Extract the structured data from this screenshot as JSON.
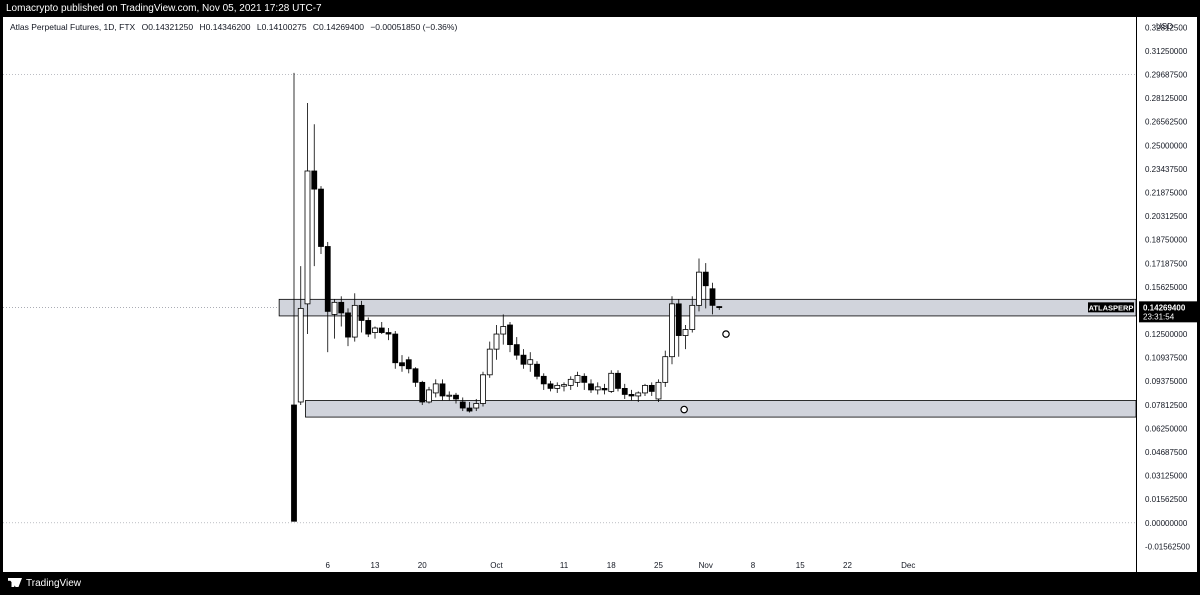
{
  "header": {
    "publisher_text": "Lomacrypto published on TradingView.com, Nov 05, 2021 17:28 UTC-7"
  },
  "legend": {
    "symbol": "Atlas Perpetual Futures, 1D, FTX",
    "open": "O0.14321250",
    "high": "H0.14346200",
    "low": "L0.14100275",
    "close": "C0.14269400",
    "change": "−0.00051850 (−0.36%)"
  },
  "currency_label": "USD",
  "price_tag": {
    "symbol": "ATLASPERP",
    "price": "0.14269400",
    "countdown": "23:31:54"
  },
  "footer": {
    "brand": "TradingView"
  },
  "colors": {
    "bull_body": "#ffffff",
    "bear_body": "#000000",
    "candle_outline": "#000000",
    "zone_fill": "#d1d4dc",
    "price_tag_bg": "#000000"
  },
  "chart_data": {
    "type": "candlestick",
    "ylim": [
      -0.024,
      0.335
    ],
    "y_ticks": [
      "0.32812500",
      "0.31250000",
      "0.29687500",
      "0.28125000",
      "0.26562500",
      "0.25000000",
      "0.23437500",
      "0.21875000",
      "0.20312500",
      "0.18750000",
      "0.17187500",
      "0.15625000",
      "0.12500000",
      "0.10937500",
      "0.09375000",
      "0.07812500",
      "0.06250000",
      "0.04687500",
      "0.03125000",
      "0.01562500",
      "0.00000000",
      "-0.01562500"
    ],
    "x_ticks": [
      {
        "label": "6",
        "day": 5
      },
      {
        "label": "13",
        "day": 12
      },
      {
        "label": "20",
        "day": 19
      },
      {
        "label": "Oct",
        "day": 30
      },
      {
        "label": "11",
        "day": 40
      },
      {
        "label": "18",
        "day": 47
      },
      {
        "label": "25",
        "day": 54
      },
      {
        "label": "Nov",
        "day": 61
      },
      {
        "label": "8",
        "day": 68
      },
      {
        "label": "15",
        "day": 75
      },
      {
        "label": "22",
        "day": 82
      },
      {
        "label": "Dec",
        "day": 91
      }
    ],
    "candles": [
      {
        "o": 0.078,
        "h": 0.298,
        "l": 0.001,
        "c": 0.001
      },
      {
        "o": 0.08,
        "h": 0.17,
        "l": 0.078,
        "c": 0.142
      },
      {
        "o": 0.145,
        "h": 0.278,
        "l": 0.125,
        "c": 0.233
      },
      {
        "o": 0.233,
        "h": 0.264,
        "l": 0.17,
        "c": 0.221
      },
      {
        "o": 0.221,
        "h": 0.223,
        "l": 0.178,
        "c": 0.183
      },
      {
        "o": 0.183,
        "h": 0.186,
        "l": 0.113,
        "c": 0.14
      },
      {
        "o": 0.138,
        "h": 0.148,
        "l": 0.122,
        "c": 0.146
      },
      {
        "o": 0.146,
        "h": 0.15,
        "l": 0.13,
        "c": 0.139
      },
      {
        "o": 0.139,
        "h": 0.142,
        "l": 0.117,
        "c": 0.123
      },
      {
        "o": 0.123,
        "h": 0.152,
        "l": 0.12,
        "c": 0.144
      },
      {
        "o": 0.144,
        "h": 0.147,
        "l": 0.126,
        "c": 0.134
      },
      {
        "o": 0.134,
        "h": 0.136,
        "l": 0.123,
        "c": 0.125
      },
      {
        "o": 0.126,
        "h": 0.13,
        "l": 0.122,
        "c": 0.129
      },
      {
        "o": 0.129,
        "h": 0.133,
        "l": 0.125,
        "c": 0.126
      },
      {
        "o": 0.126,
        "h": 0.129,
        "l": 0.121,
        "c": 0.125
      },
      {
        "o": 0.125,
        "h": 0.127,
        "l": 0.102,
        "c": 0.106
      },
      {
        "o": 0.106,
        "h": 0.111,
        "l": 0.1,
        "c": 0.104
      },
      {
        "o": 0.108,
        "h": 0.11,
        "l": 0.099,
        "c": 0.102
      },
      {
        "o": 0.102,
        "h": 0.103,
        "l": 0.09,
        "c": 0.093
      },
      {
        "o": 0.093,
        "h": 0.094,
        "l": 0.078,
        "c": 0.08
      },
      {
        "o": 0.08,
        "h": 0.09,
        "l": 0.079,
        "c": 0.088
      },
      {
        "o": 0.086,
        "h": 0.095,
        "l": 0.083,
        "c": 0.092
      },
      {
        "o": 0.092,
        "h": 0.095,
        "l": 0.081,
        "c": 0.084
      },
      {
        "o": 0.084,
        "h": 0.087,
        "l": 0.081,
        "c": 0.0845
      },
      {
        "o": 0.0845,
        "h": 0.086,
        "l": 0.079,
        "c": 0.082
      },
      {
        "o": 0.08,
        "h": 0.083,
        "l": 0.074,
        "c": 0.076
      },
      {
        "o": 0.076,
        "h": 0.08,
        "l": 0.073,
        "c": 0.074
      },
      {
        "o": 0.076,
        "h": 0.082,
        "l": 0.074,
        "c": 0.079
      },
      {
        "o": 0.079,
        "h": 0.1,
        "l": 0.077,
        "c": 0.098
      },
      {
        "o": 0.098,
        "h": 0.12,
        "l": 0.096,
        "c": 0.115
      },
      {
        "o": 0.115,
        "h": 0.131,
        "l": 0.108,
        "c": 0.125
      },
      {
        "o": 0.125,
        "h": 0.138,
        "l": 0.118,
        "c": 0.13
      },
      {
        "o": 0.131,
        "h": 0.133,
        "l": 0.113,
        "c": 0.118
      },
      {
        "o": 0.118,
        "h": 0.123,
        "l": 0.108,
        "c": 0.111
      },
      {
        "o": 0.111,
        "h": 0.115,
        "l": 0.102,
        "c": 0.105
      },
      {
        "o": 0.105,
        "h": 0.113,
        "l": 0.1,
        "c": 0.108
      },
      {
        "o": 0.105,
        "h": 0.107,
        "l": 0.095,
        "c": 0.097
      },
      {
        "o": 0.097,
        "h": 0.099,
        "l": 0.088,
        "c": 0.092
      },
      {
        "o": 0.092,
        "h": 0.094,
        "l": 0.087,
        "c": 0.089
      },
      {
        "o": 0.089,
        "h": 0.093,
        "l": 0.086,
        "c": 0.091
      },
      {
        "o": 0.0905,
        "h": 0.093,
        "l": 0.087,
        "c": 0.0915
      },
      {
        "o": 0.091,
        "h": 0.097,
        "l": 0.088,
        "c": 0.095
      },
      {
        "o": 0.093,
        "h": 0.1,
        "l": 0.09,
        "c": 0.0975
      },
      {
        "o": 0.097,
        "h": 0.099,
        "l": 0.088,
        "c": 0.093
      },
      {
        "o": 0.092,
        "h": 0.095,
        "l": 0.086,
        "c": 0.088
      },
      {
        "o": 0.088,
        "h": 0.093,
        "l": 0.085,
        "c": 0.09
      },
      {
        "o": 0.089,
        "h": 0.092,
        "l": 0.085,
        "c": 0.088
      },
      {
        "o": 0.087,
        "h": 0.101,
        "l": 0.086,
        "c": 0.099
      },
      {
        "o": 0.099,
        "h": 0.101,
        "l": 0.087,
        "c": 0.089
      },
      {
        "o": 0.089,
        "h": 0.092,
        "l": 0.082,
        "c": 0.085
      },
      {
        "o": 0.085,
        "h": 0.088,
        "l": 0.081,
        "c": 0.084
      },
      {
        "o": 0.084,
        "h": 0.087,
        "l": 0.08,
        "c": 0.086
      },
      {
        "o": 0.086,
        "h": 0.092,
        "l": 0.084,
        "c": 0.091
      },
      {
        "o": 0.091,
        "h": 0.093,
        "l": 0.084,
        "c": 0.087
      },
      {
        "o": 0.082,
        "h": 0.095,
        "l": 0.08,
        "c": 0.093
      },
      {
        "o": 0.093,
        "h": 0.114,
        "l": 0.09,
        "c": 0.11
      },
      {
        "o": 0.11,
        "h": 0.15,
        "l": 0.105,
        "c": 0.145
      },
      {
        "o": 0.145,
        "h": 0.148,
        "l": 0.11,
        "c": 0.124
      },
      {
        "o": 0.124,
        "h": 0.131,
        "l": 0.115,
        "c": 0.128
      },
      {
        "o": 0.128,
        "h": 0.15,
        "l": 0.126,
        "c": 0.144
      },
      {
        "o": 0.144,
        "h": 0.175,
        "l": 0.14,
        "c": 0.166
      },
      {
        "o": 0.166,
        "h": 0.172,
        "l": 0.142,
        "c": 0.157
      },
      {
        "o": 0.155,
        "h": 0.159,
        "l": 0.138,
        "c": 0.144
      },
      {
        "o": 0.1432,
        "h": 0.1435,
        "l": 0.141,
        "c": 0.1427
      }
    ],
    "zones": [
      {
        "top": 0.148,
        "bottom": 0.137
      },
      {
        "top": 0.081,
        "bottom": 0.07
      }
    ],
    "current_price": 0.142694,
    "dotted_levels": [
      0.296875,
      0.0
    ]
  }
}
